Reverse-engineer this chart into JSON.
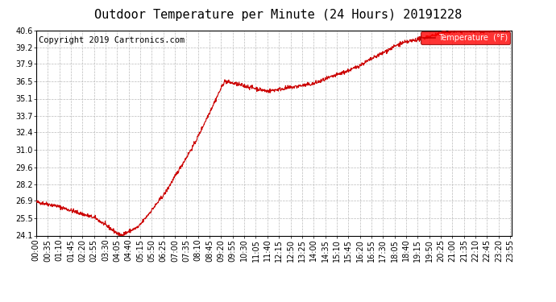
{
  "title": "Outdoor Temperature per Minute (24 Hours) 20191228",
  "copyright_text": "Copyright 2019 Cartronics.com",
  "legend_text": "Temperature  (°F)",
  "line_color": "#cc0000",
  "background_color": "#ffffff",
  "grid_color": "#bbbbbb",
  "ytick_labels": [
    "24.1",
    "25.5",
    "26.9",
    "28.2",
    "29.6",
    "31.0",
    "32.4",
    "33.7",
    "35.1",
    "36.5",
    "37.9",
    "39.2",
    "40.6"
  ],
  "ytick_values": [
    24.1,
    25.5,
    26.9,
    28.2,
    29.6,
    31.0,
    32.4,
    33.7,
    35.1,
    36.5,
    37.9,
    39.2,
    40.6
  ],
  "ymin": 24.1,
  "ymax": 40.6,
  "title_fontsize": 11,
  "axis_fontsize": 7,
  "copyright_fontsize": 7.5
}
